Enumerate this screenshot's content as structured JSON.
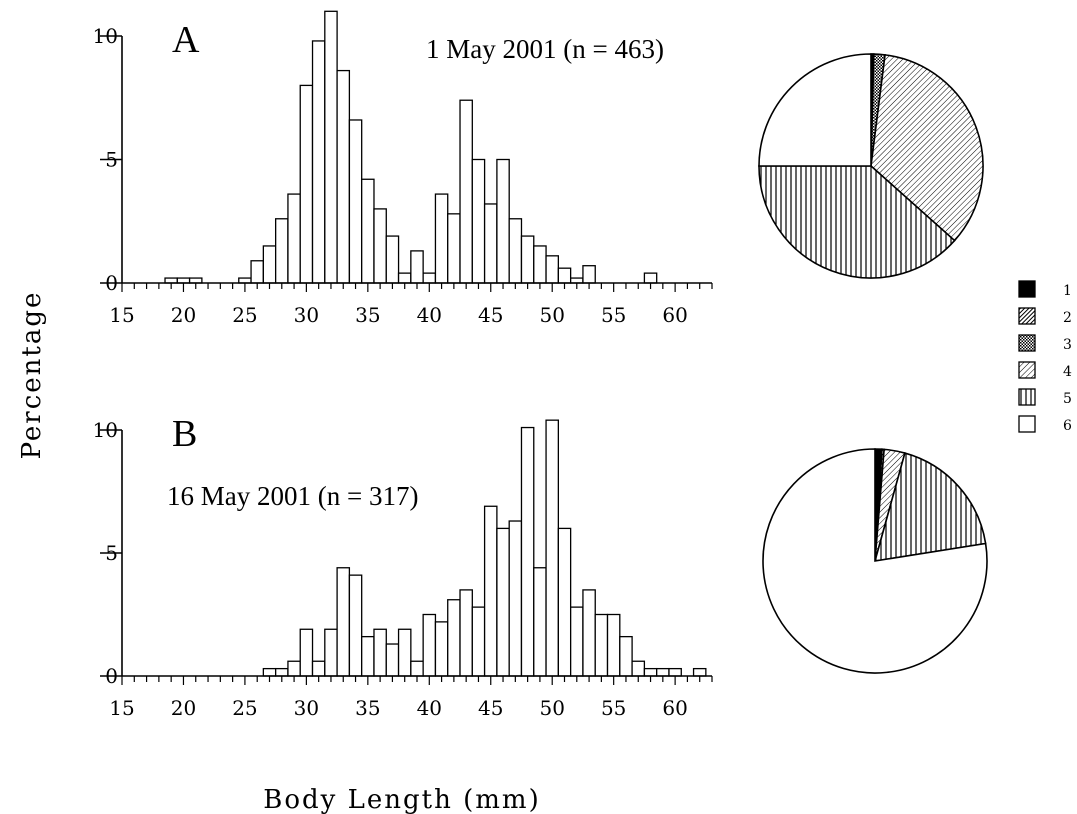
{
  "ylabel": "Percentage",
  "xlabel": "Body Length (mm)",
  "colors": {
    "bar_fill": "#ffffff",
    "stroke": "#000000"
  },
  "legend": {
    "items": [
      {
        "label": "1",
        "pattern": "solid"
      },
      {
        "label": "2",
        "pattern": "dense-diagonal"
      },
      {
        "label": "3",
        "pattern": "crosshatch"
      },
      {
        "label": "4",
        "pattern": "diagonal"
      },
      {
        "label": "5",
        "pattern": "vertical"
      },
      {
        "label": "6",
        "pattern": "blank"
      }
    ]
  },
  "chart_data": [
    {
      "type": "bar",
      "panel": "A",
      "title": "1 May 2001 (n = 463)",
      "xlim": [
        15,
        63
      ],
      "ylim": [
        0,
        10
      ],
      "xticks": [
        "15",
        "20",
        "25",
        "30",
        "35",
        "40",
        "45",
        "50",
        "55",
        "60"
      ],
      "yticks": [
        "0",
        "5",
        "10"
      ],
      "x": [
        19,
        20,
        21,
        22,
        23,
        24,
        25,
        26,
        27,
        28,
        29,
        30,
        31,
        32,
        33,
        34,
        35,
        36,
        37,
        38,
        39,
        40,
        41,
        42,
        43,
        44,
        45,
        46,
        47,
        48,
        49,
        50,
        51,
        52,
        53,
        54,
        55,
        56,
        57,
        58,
        59,
        60,
        61,
        62
      ],
      "values": [
        0.2,
        0.2,
        0.2,
        0,
        0,
        0,
        0.2,
        0.9,
        1.5,
        2.6,
        3.6,
        8.0,
        9.8,
        11.0,
        8.6,
        6.6,
        4.2,
        3.0,
        1.9,
        0.4,
        1.3,
        0.4,
        3.6,
        2.8,
        7.4,
        5.0,
        3.2,
        5.0,
        2.6,
        1.9,
        1.5,
        1.1,
        0.6,
        0.2,
        0.7,
        0,
        0,
        0,
        0,
        0.4,
        0,
        0,
        0,
        0
      ]
    },
    {
      "type": "bar",
      "panel": "B",
      "title": "16 May 2001 (n = 317)",
      "xlim": [
        15,
        63
      ],
      "ylim": [
        0,
        10
      ],
      "xticks": [
        "15",
        "20",
        "25",
        "30",
        "35",
        "40",
        "45",
        "50",
        "55",
        "60"
      ],
      "yticks": [
        "0",
        "5",
        "10"
      ],
      "x": [
        27,
        28,
        29,
        30,
        31,
        32,
        33,
        34,
        35,
        36,
        37,
        38,
        39,
        40,
        41,
        42,
        43,
        44,
        45,
        46,
        47,
        48,
        49,
        50,
        51,
        52,
        53,
        54,
        55,
        56,
        57,
        58,
        59,
        60,
        61,
        62
      ],
      "values": [
        0.3,
        0.3,
        0.6,
        1.9,
        0.6,
        1.9,
        4.4,
        4.1,
        1.6,
        1.9,
        1.3,
        1.9,
        0.6,
        2.5,
        2.2,
        3.1,
        3.5,
        2.8,
        6.9,
        6.0,
        6.3,
        10.1,
        4.4,
        10.4,
        6.0,
        2.8,
        3.5,
        2.5,
        2.5,
        1.6,
        0.6,
        0.3,
        0.3,
        0.3,
        0,
        0.3
      ]
    },
    {
      "type": "pie",
      "panel": "A",
      "slices": [
        {
          "label": "1",
          "value": 0.2
        },
        {
          "label": "2",
          "value": 0.2
        },
        {
          "label": "3",
          "value": 1.6
        },
        {
          "label": "4",
          "value": 34.6
        },
        {
          "label": "5",
          "value": 38.4
        },
        {
          "label": "6",
          "value": 25.0
        }
      ]
    },
    {
      "type": "pie",
      "panel": "B",
      "slices": [
        {
          "label": "1",
          "value": 1.0
        },
        {
          "label": "2",
          "value": 0.3
        },
        {
          "label": "3",
          "value": 0
        },
        {
          "label": "4",
          "value": 3.0
        },
        {
          "label": "5",
          "value": 18.2
        },
        {
          "label": "6",
          "value": 77.5
        }
      ]
    }
  ]
}
